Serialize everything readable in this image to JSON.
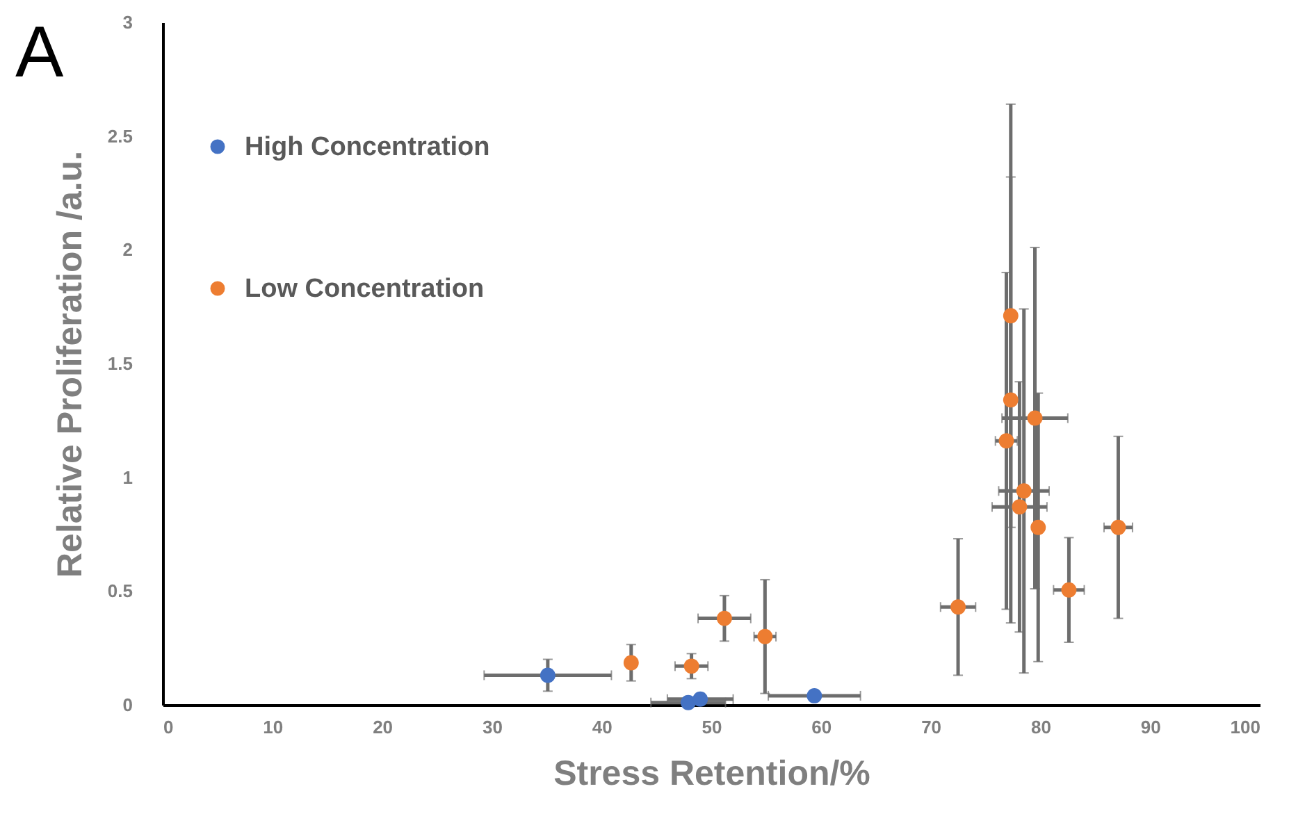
{
  "chart_data": {
    "type": "scatter",
    "title": "A",
    "xlabel": "Stress Retention/%",
    "ylabel": "Relative Proliferation /a.u.",
    "xlim": [
      0,
      100
    ],
    "xticks": [
      0,
      10,
      20,
      30,
      40,
      50,
      60,
      70,
      80,
      90,
      100
    ],
    "ylim": [
      0,
      3
    ],
    "yticks": [
      0,
      0.5,
      1,
      1.5,
      2,
      2.5,
      3
    ],
    "grid": false,
    "legend": "top left",
    "marker": "circle",
    "series": [
      {
        "name": "High Concentration",
        "color": "#4472c4",
        "x": [
          35.1,
          47.9,
          49.0,
          59.4
        ],
        "values": [
          0.13,
          0.01,
          0.025,
          0.04
        ],
        "errors": [
          0.07,
          0.01,
          0.01,
          null
        ],
        "xerrors": [
          5.8,
          3.4,
          3.0,
          4.2
        ]
      },
      {
        "name": "Low Concentration",
        "color": "#ed7d31",
        "x": [
          42.7,
          48.2,
          51.2,
          54.9,
          72.5,
          77.3,
          77.3,
          79.5,
          76.9,
          78.5,
          78.1,
          79.8,
          82.6,
          87.1
        ],
        "values": [
          0.185,
          0.17,
          0.38,
          0.3,
          0.43,
          1.71,
          1.34,
          1.26,
          1.16,
          0.94,
          0.87,
          0.78,
          0.505,
          0.78
        ],
        "errors": [
          0.08,
          0.055,
          0.1,
          0.25,
          0.3,
          0.93,
          0.98,
          0.75,
          0.74,
          0.8,
          0.55,
          0.59,
          0.23,
          0.4
        ],
        "xerrors": [
          null,
          1.5,
          2.4,
          1,
          1.6,
          null,
          null,
          3,
          1.0,
          2.3,
          2.5,
          null,
          1.4,
          1.3
        ]
      }
    ]
  }
}
